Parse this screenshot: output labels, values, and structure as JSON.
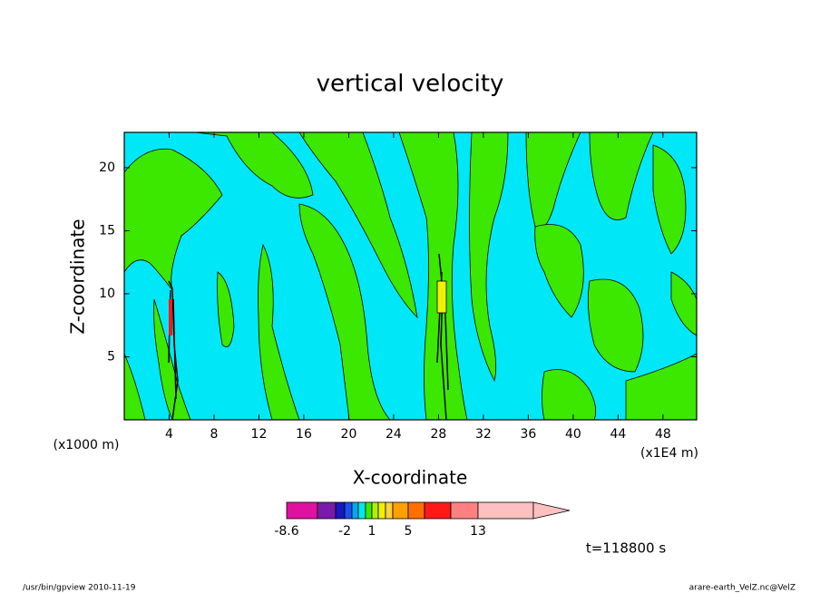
{
  "chart_data": {
    "type": "contour",
    "title": "vertical velocity",
    "x_label": "X-coordinate",
    "y_label": "Z-coordinate",
    "x_unit_label": "(x1000 m)",
    "x_unit_label_right": "(x1E4 m)",
    "xlim": [
      0,
      51
    ],
    "xticks": [
      4,
      8,
      12,
      16,
      20,
      24,
      28,
      32,
      36,
      40,
      44,
      48
    ],
    "ylim": [
      0,
      22.8
    ],
    "yticks": [
      5,
      10,
      15,
      20
    ],
    "colorbar": {
      "colors": [
        "#e010a0",
        "#7a1aa8",
        "#1818c0",
        "#1a50f0",
        "#00a8f0",
        "#00e8e8",
        "#3ce800",
        "#b0f000",
        "#f0f000",
        "#ffd040",
        "#ffa000",
        "#ff7000",
        "#ff1818",
        "#ff8080",
        "#ffc0c0"
      ],
      "labels": [
        {
          "label": "-8.6",
          "index": 0
        },
        {
          "label": "-2",
          "index": 3
        },
        {
          "label": "1",
          "index": 7
        },
        {
          "label": "5",
          "index": 11
        },
        {
          "label": "13",
          "index": 14
        }
      ]
    },
    "time_label": "t=118800 s",
    "footer_left": "/usr/bin/gpview   2010-11-19",
    "footer_right": "arare-earth_VelZ.nc@VelZ"
  }
}
